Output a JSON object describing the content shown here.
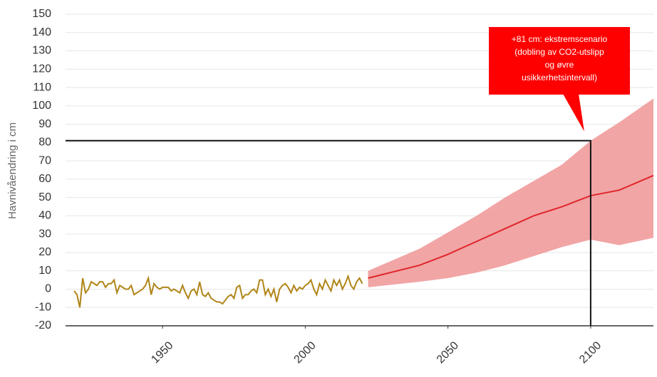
{
  "chart_data": {
    "type": "line",
    "y_label": "Havnivåendring i cm",
    "xlim": [
      1916,
      2122
    ],
    "ylim": [
      -20,
      150
    ],
    "xticks": [
      1950,
      2000,
      2050,
      2100
    ],
    "yticks": [
      150,
      140,
      130,
      120,
      110,
      100,
      90,
      80,
      70,
      60,
      50,
      40,
      30,
      20,
      10,
      0,
      -10,
      -20
    ],
    "grid": true,
    "series": [
      {
        "color": "#b08518",
        "x": [
          1919,
          1920,
          1921,
          1922,
          1923,
          1924,
          1925,
          1926,
          1927,
          1928,
          1929,
          1930,
          1931,
          1932,
          1933,
          1934,
          1935,
          1936,
          1937,
          1938,
          1939,
          1940,
          1941,
          1942,
          1943,
          1944,
          1945,
          1946,
          1947,
          1948,
          1949,
          1950,
          1951,
          1952,
          1953,
          1954,
          1955,
          1956,
          1957,
          1958,
          1959,
          1960,
          1961,
          1962,
          1963,
          1964,
          1965,
          1966,
          1967,
          1968,
          1969,
          1970,
          1971,
          1972,
          1973,
          1974,
          1975,
          1976,
          1977,
          1978,
          1979,
          1980,
          1981,
          1982,
          1983,
          1984,
          1985,
          1986,
          1987,
          1988,
          1989,
          1990,
          1991,
          1992,
          1993,
          1994,
          1995,
          1996,
          1997,
          1998,
          1999,
          2000,
          2001,
          2002,
          2003,
          2004,
          2005,
          2006,
          2007,
          2008,
          2009,
          2010,
          2011,
          2012,
          2013,
          2014,
          2015,
          2016,
          2017,
          2018,
          2019,
          2020
        ],
        "values": [
          -1,
          -3,
          -10,
          6,
          -2,
          0,
          4,
          3,
          2,
          4,
          4,
          1,
          3,
          3,
          5,
          -2,
          2,
          1,
          0,
          0,
          2,
          -3,
          -2,
          -1,
          0,
          2,
          6,
          -3,
          3,
          1,
          0,
          1,
          1,
          1,
          -1,
          0,
          -1,
          -2,
          2,
          -2,
          -5,
          -1,
          0,
          -3,
          4,
          -3,
          -4,
          -2,
          -5,
          -6,
          -7,
          -7,
          -8,
          -6,
          -4,
          -3,
          -5,
          1,
          2,
          -5,
          -3,
          -3,
          -1,
          0,
          -2,
          5,
          5,
          -3,
          0,
          -4,
          0,
          -7,
          0,
          2,
          3,
          1,
          -2,
          2,
          -1,
          1,
          0,
          2,
          3,
          5,
          0,
          -3,
          3,
          0,
          5,
          2,
          -1,
          5,
          2,
          5,
          0,
          3,
          7,
          2,
          0,
          4,
          6,
          3
        ]
      },
      {
        "color": "#e0262b",
        "x": [
          2022,
          2040,
          2050,
          2060,
          2070,
          2080,
          2090,
          2100,
          2110,
          2122
        ],
        "values": [
          6,
          13,
          19,
          26,
          33,
          40,
          45,
          51,
          54,
          62
        ]
      }
    ],
    "band": {
      "color": "#f0a0a0",
      "x": [
        2022,
        2040,
        2050,
        2060,
        2070,
        2080,
        2090,
        2100,
        2110,
        2122
      ],
      "low": [
        1,
        4,
        6,
        9,
        13,
        18,
        23,
        27,
        24,
        28
      ],
      "high": [
        10,
        22,
        31,
        40,
        50,
        59,
        68,
        81,
        91,
        104
      ]
    },
    "annotation": {
      "x": 2100,
      "y": 81,
      "color": "#ff0000",
      "lines": [
        "+81 cm: ekstremscenario",
        "(dobling av CO2-utslipp",
        "og øvre",
        "usikkerhetsintervall)"
      ]
    }
  }
}
